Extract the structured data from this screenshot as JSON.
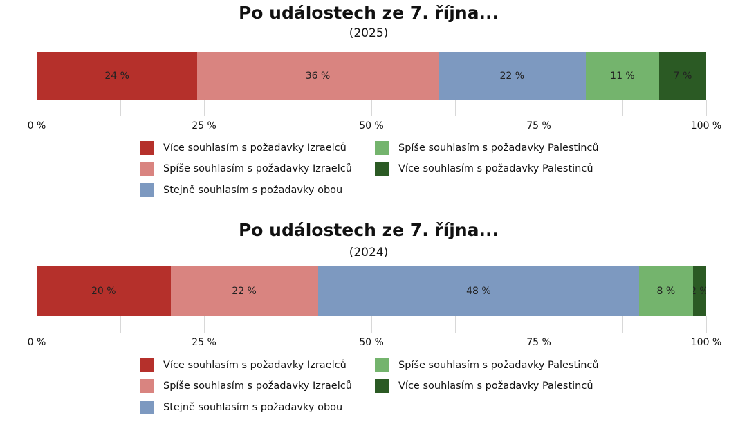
{
  "colors": {
    "vice_izrael": "#b5302b",
    "spise_izrael": "#d98480",
    "stejne": "#7d99c0",
    "spise_palestina": "#74b46d",
    "vice_palestina": "#2b5a24"
  },
  "chart_data": [
    {
      "type": "bar",
      "orientation": "horizontal-stacked",
      "title": "Po událostech ze 7. října...",
      "subtitle": "(2025)",
      "xlim": [
        0,
        100
      ],
      "xticks": [
        "0 %",
        "25 %",
        "50 %",
        "75 %",
        "100 %"
      ],
      "series": [
        {
          "name": "Více souhlasím s požadavky Izraelců",
          "value": 24,
          "label": "24 %",
          "color_key": "vice_izrael"
        },
        {
          "name": "Spíše souhlasím s požadavky Izraelců",
          "value": 36,
          "label": "36 %",
          "color_key": "spise_izrael"
        },
        {
          "name": "Stejně souhlasím s požadavky obou",
          "value": 22,
          "label": "22 %",
          "color_key": "stejne"
        },
        {
          "name": "Spíše souhlasím s požadavky Palestinců",
          "value": 11,
          "label": "11 %",
          "color_key": "spise_palestina"
        },
        {
          "name": "Více souhlasím s požadavky Palestinců",
          "value": 7,
          "label": "7 %",
          "color_key": "vice_palestina"
        }
      ],
      "legend": "bottom"
    },
    {
      "type": "bar",
      "orientation": "horizontal-stacked",
      "title": "Po událostech ze 7. října...",
      "subtitle": "(2024)",
      "xlim": [
        0,
        100
      ],
      "xticks": [
        "0 %",
        "25 %",
        "50 %",
        "75 %",
        "100 %"
      ],
      "series": [
        {
          "name": "Více souhlasím s požadavky Izraelců",
          "value": 20,
          "label": "20 %",
          "color_key": "vice_izrael"
        },
        {
          "name": "Spíše souhlasím s požadavky Izraelců",
          "value": 22,
          "label": "22 %",
          "color_key": "spise_izrael"
        },
        {
          "name": "Stejně souhlasím s požadavky obou",
          "value": 48,
          "label": "48 %",
          "color_key": "stejne"
        },
        {
          "name": "Spíše souhlasím s požadavky Palestinců",
          "value": 8,
          "label": "8 %",
          "color_key": "spise_palestina"
        },
        {
          "name": "Více souhlasím s požadavky Palestinců",
          "value": 2,
          "label": "2 %",
          "color_key": "vice_palestina"
        }
      ],
      "legend": "bottom"
    }
  ]
}
